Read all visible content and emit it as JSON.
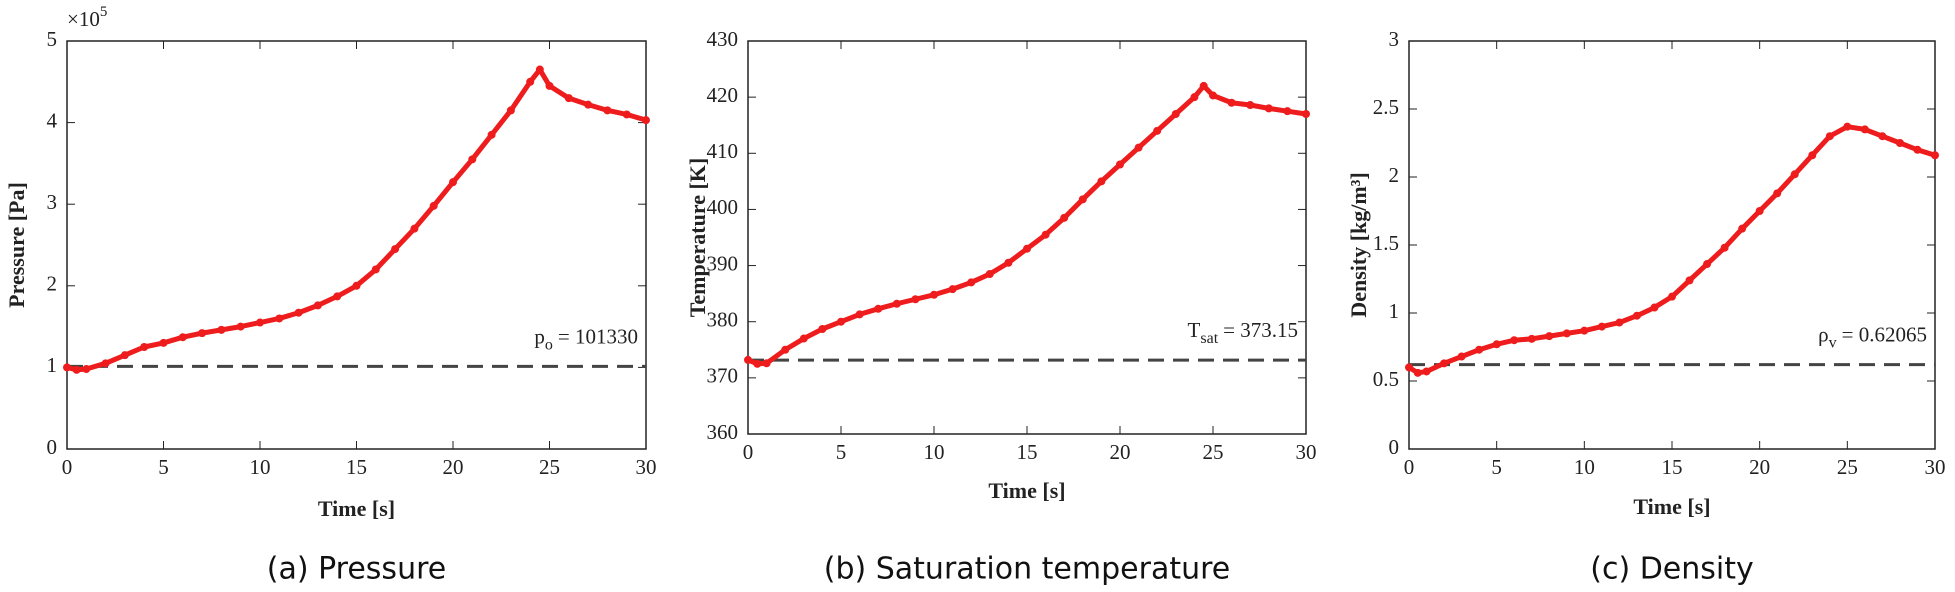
{
  "chart_data": [
    {
      "type": "line",
      "title": "(a) Pressure",
      "xlabel": "Time [s]",
      "ylabel": "Pressure [Pa]",
      "y_multiplier": {
        "base": "×10",
        "exponent": "5"
      },
      "x": [
        0,
        0.5,
        1,
        2,
        3,
        4,
        5,
        6,
        7,
        8,
        9,
        10,
        11,
        12,
        13,
        14,
        15,
        16,
        17,
        18,
        19,
        20,
        21,
        22,
        23,
        24,
        24.5,
        25,
        26,
        27,
        28,
        29,
        30
      ],
      "values": [
        1.0,
        0.97,
        0.98,
        1.05,
        1.15,
        1.25,
        1.3,
        1.37,
        1.42,
        1.46,
        1.5,
        1.55,
        1.6,
        1.67,
        1.76,
        1.87,
        2.0,
        2.2,
        2.45,
        2.7,
        2.98,
        3.27,
        3.55,
        3.85,
        4.15,
        4.5,
        4.65,
        4.45,
        4.3,
        4.22,
        4.15,
        4.1,
        4.03
      ],
      "color": "#ee1c1c",
      "reference": {
        "value": 1.0133,
        "color": "#444444",
        "label": {
          "symbol": "p",
          "subscript": "o",
          "text": "= 101330"
        }
      },
      "xlim": [
        0,
        30
      ],
      "xticks": [
        0,
        5,
        10,
        15,
        20,
        25,
        30
      ],
      "ylim": [
        0,
        5
      ],
      "yticks": [
        0,
        1,
        2,
        3,
        4,
        5
      ]
    },
    {
      "type": "line",
      "title": "(b) Saturation temperature",
      "xlabel": "Time [s]",
      "ylabel": "Temperature [K]",
      "x": [
        0,
        0.5,
        1,
        2,
        3,
        4,
        5,
        6,
        7,
        8,
        9,
        10,
        11,
        12,
        13,
        14,
        15,
        16,
        17,
        18,
        19,
        20,
        21,
        22,
        23,
        24,
        24.5,
        25,
        26,
        27,
        28,
        29,
        30
      ],
      "values": [
        373.2,
        372.5,
        372.6,
        375,
        377,
        378.7,
        380,
        381.3,
        382.3,
        383.2,
        384,
        384.8,
        385.8,
        387,
        388.5,
        390.5,
        393,
        395.5,
        398.5,
        401.8,
        405,
        408,
        411,
        414,
        417,
        420,
        422,
        420.3,
        419,
        418.6,
        418,
        417.5,
        417
      ],
      "color": "#ee1c1c",
      "reference": {
        "value": 373.15,
        "color": "#444444",
        "label": {
          "symbol": "T",
          "subscript": "sat",
          "text": "= 373.15"
        }
      },
      "xlim": [
        0,
        30
      ],
      "xticks": [
        0,
        5,
        10,
        15,
        20,
        25,
        30
      ],
      "ylim": [
        360,
        430
      ],
      "yticks": [
        360,
        370,
        380,
        390,
        400,
        410,
        420,
        430
      ]
    },
    {
      "type": "line",
      "title": "(c) Density",
      "xlabel": "Time [s]",
      "ylabel": "Density [kg/m³]",
      "x": [
        0,
        0.5,
        1,
        2,
        3,
        4,
        5,
        6,
        7,
        8,
        9,
        10,
        11,
        12,
        13,
        14,
        15,
        16,
        17,
        18,
        19,
        20,
        21,
        22,
        23,
        24,
        25,
        26,
        27,
        28,
        29,
        30
      ],
      "values": [
        0.6,
        0.56,
        0.57,
        0.63,
        0.68,
        0.73,
        0.77,
        0.8,
        0.81,
        0.83,
        0.85,
        0.87,
        0.9,
        0.93,
        0.98,
        1.04,
        1.12,
        1.24,
        1.36,
        1.48,
        1.62,
        1.75,
        1.88,
        2.02,
        2.16,
        2.3,
        2.37,
        2.35,
        2.3,
        2.25,
        2.2,
        2.16
      ],
      "color": "#ee1c1c",
      "reference": {
        "value": 0.62065,
        "color": "#444444",
        "label": {
          "symbol": "ρ",
          "subscript": "v",
          "text": "= 0.62065"
        }
      },
      "xlim": [
        0,
        30
      ],
      "xticks": [
        0,
        5,
        10,
        15,
        20,
        25,
        30
      ],
      "ylim": [
        0,
        3
      ],
      "yticks": [
        0,
        0.5,
        1,
        1.5,
        2,
        2.5,
        3
      ]
    }
  ]
}
